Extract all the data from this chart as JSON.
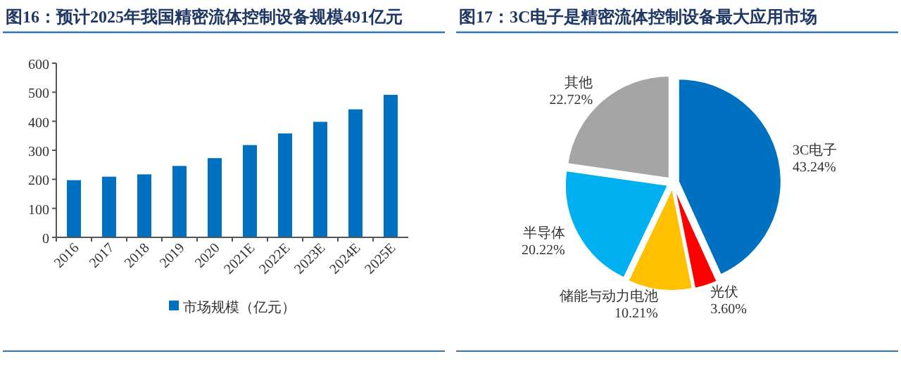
{
  "chart_data": [
    {
      "type": "bar",
      "title": "**图16：**预计2025年我国精密流体控制设备规模491亿元",
      "categories": [
        "2016",
        "2017",
        "2018",
        "2019",
        "2020",
        "2021E",
        "2022E",
        "2023E",
        "2024E",
        "2025E"
      ],
      "series": [
        {
          "name": "市场规模（亿元）",
          "color": "#0070c0",
          "values": [
            197,
            209,
            217,
            246,
            273,
            318,
            358,
            398,
            441,
            491
          ]
        }
      ],
      "ylim": [
        0,
        600
      ],
      "yticks": [
        0,
        100,
        200,
        300,
        400,
        500,
        600
      ],
      "legend": "bottom",
      "grid": false
    },
    {
      "type": "pie",
      "title": "**图17：**3C电子是精密流体控制设备最大应用市场",
      "categories": [
        "3C电子",
        "光伏",
        "储能与动力电池",
        "半导体",
        "其他"
      ],
      "values": [
        43.24,
        3.6,
        10.21,
        20.22,
        22.72
      ],
      "colors": [
        "#0070c0",
        "#ff0000",
        "#ffc000",
        "#00b0f0",
        "#a5a5a5"
      ],
      "value_labels": [
        "43.24%",
        "3.60%",
        "10.21%",
        "20.22%",
        "22.72%"
      ]
    }
  ]
}
